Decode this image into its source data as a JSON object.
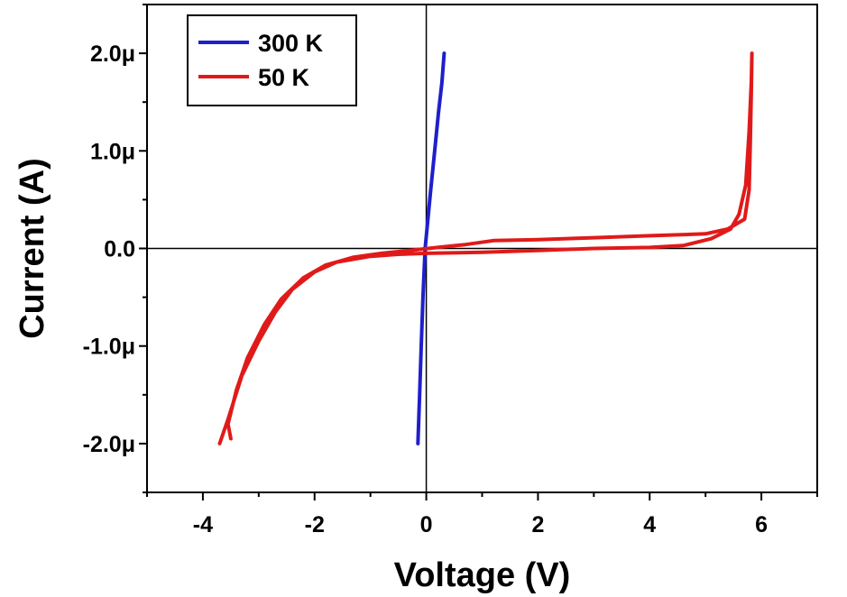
{
  "chart_data": {
    "type": "line",
    "title": "",
    "xlabel": "Voltage (V)",
    "ylabel": "Current (A)",
    "xlim": [
      -5,
      7
    ],
    "ylim": [
      -2.5e-06,
      2.5e-06
    ],
    "x_ticks": [
      -4,
      -2,
      0,
      2,
      4,
      6
    ],
    "x_tick_labels": [
      "-4",
      "-2",
      "0",
      "2",
      "4",
      "6"
    ],
    "y_ticks": [
      -2e-06,
      -1e-06,
      0,
      1e-06,
      2e-06
    ],
    "y_tick_labels": [
      "-2.0μ",
      "-1.0μ",
      "0.0",
      "1.0μ",
      "2.0μ"
    ],
    "grid": false,
    "zero_lines": true,
    "legend_position": "top-left",
    "series": [
      {
        "name": "300 K",
        "color": "#1f1fcc",
        "points": [
          [
            -0.15,
            -2e-06
          ],
          [
            -0.12,
            -1.5e-06
          ],
          [
            -0.09,
            -1e-06
          ],
          [
            -0.06,
            -5e-07
          ],
          [
            -0.02,
            0.0
          ],
          [
            0.03,
            3e-07
          ],
          [
            0.08,
            6e-07
          ],
          [
            0.15,
            1e-06
          ],
          [
            0.22,
            1.4e-06
          ],
          [
            0.28,
            1.7e-06
          ],
          [
            0.32,
            2e-06
          ]
        ]
      },
      {
        "name": "50 K",
        "color": "#e01a1a",
        "points": [
          [
            -3.7,
            -2e-06
          ],
          [
            -3.55,
            -1.75e-06
          ],
          [
            -3.3,
            -1.3e-06
          ],
          [
            -3.0,
            -9.5e-07
          ],
          [
            -2.7,
            -6.5e-07
          ],
          [
            -2.4,
            -4.2e-07
          ],
          [
            -2.0,
            -2.4e-07
          ],
          [
            -1.6,
            -1.4e-07
          ],
          [
            -1.0,
            -8e-08
          ],
          [
            -0.5,
            -6e-08
          ],
          [
            0.0,
            -5e-08
          ],
          [
            1.0,
            -4e-08
          ],
          [
            2.0,
            -2e-08
          ],
          [
            3.0,
            0.0
          ],
          [
            4.0,
            1e-08
          ],
          [
            4.6,
            3e-08
          ],
          [
            5.1,
            1e-07
          ],
          [
            5.45,
            2e-07
          ],
          [
            5.6,
            3.5e-07
          ],
          [
            5.72,
            6.5e-07
          ],
          [
            5.78,
            1.2e-06
          ],
          [
            5.82,
            1.7e-06
          ],
          [
            5.83,
            2e-06
          ],
          [
            5.82,
            1.6e-06
          ],
          [
            5.8,
            1.05e-06
          ],
          [
            5.78,
            6e-07
          ],
          [
            5.7,
            3e-07
          ],
          [
            5.4,
            2e-07
          ],
          [
            5.0,
            1.5e-07
          ],
          [
            4.0,
            1.3e-07
          ],
          [
            3.0,
            1.1e-07
          ],
          [
            2.0,
            9e-08
          ],
          [
            1.2,
            8e-08
          ],
          [
            0.7,
            4e-08
          ],
          [
            0.2,
            1e-08
          ],
          [
            -0.3,
            -2e-08
          ],
          [
            -0.8,
            -5e-08
          ],
          [
            -1.3,
            -9e-08
          ],
          [
            -1.8,
            -1.7e-07
          ],
          [
            -2.2,
            -3e-07
          ],
          [
            -2.6,
            -5.2e-07
          ],
          [
            -2.9,
            -7.8e-07
          ],
          [
            -3.2,
            -1.12e-06
          ],
          [
            -3.4,
            -1.45e-06
          ],
          [
            -3.55,
            -1.8e-06
          ],
          [
            -3.5,
            -1.95e-06
          ]
        ]
      }
    ]
  }
}
